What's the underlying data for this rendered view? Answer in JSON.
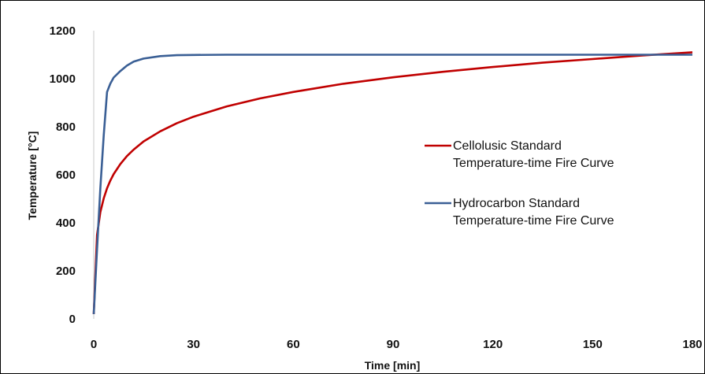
{
  "chart_data": {
    "type": "line",
    "xlabel": "Time [min]",
    "ylabel": "Temperature [°C]",
    "xlim": [
      0,
      180
    ],
    "ylim": [
      0,
      1200
    ],
    "xticks": [
      "0",
      "30",
      "60",
      "90",
      "120",
      "150",
      "180"
    ],
    "yticks": [
      "0",
      "200",
      "400",
      "600",
      "800",
      "1000",
      "1200"
    ],
    "grid": false,
    "legend_position": "right",
    "series": [
      {
        "name_lines": [
          "Cellolusic Standard",
          "Temperature-time Fire Curve"
        ],
        "color": "#c00000",
        "x": [
          0,
          1,
          2,
          3,
          4,
          5,
          6,
          8,
          10,
          12,
          15,
          20,
          25,
          30,
          40,
          50,
          60,
          75,
          90,
          105,
          120,
          135,
          150,
          165,
          180
        ],
        "y": [
          20,
          349,
          445,
          502,
          544,
          576,
          603,
          645,
          678,
          705,
          739,
          781,
          815,
          842,
          885,
          918,
          945,
          979,
          1006,
          1029,
          1049,
          1067,
          1082,
          1097,
          1110
        ]
      },
      {
        "name_lines": [
          "Hydrocarbon Standard",
          "Temperature-time Fire Curve"
        ],
        "color": "#3a5f95",
        "x": [
          0,
          1,
          2,
          3,
          4,
          5,
          6,
          8,
          10,
          12,
          15,
          20,
          25,
          30,
          40,
          50,
          60,
          75,
          90,
          105,
          120,
          135,
          150,
          165,
          180
        ],
        "y": [
          20,
          290,
          545,
          765,
          945,
          980,
          1005,
          1032,
          1055,
          1071,
          1084,
          1094,
          1098,
          1099,
          1100,
          1100,
          1100,
          1100,
          1100,
          1100,
          1100,
          1100,
          1100,
          1100,
          1100
        ]
      }
    ]
  }
}
